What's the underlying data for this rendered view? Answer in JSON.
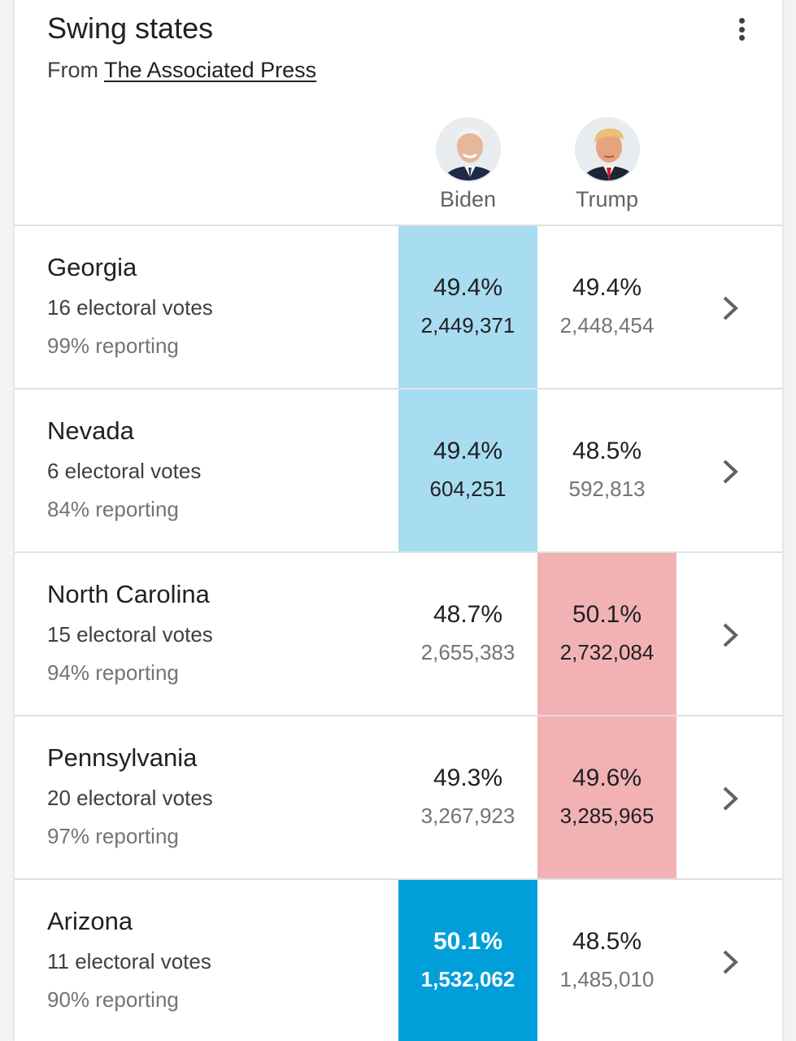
{
  "header": {
    "title": "Swing states",
    "source_prefix": "From",
    "source_link": "The Associated Press",
    "menu_icon": "more-vert-icon"
  },
  "candidates": [
    {
      "name": "Biden",
      "color": "#009fd9"
    },
    {
      "name": "Trump",
      "color": "#e8404a"
    }
  ],
  "colors": {
    "biden_leading": "#a8dcf0",
    "biden_won": "#009fd9",
    "trump_leading": "#f2b2b4"
  },
  "states": [
    {
      "name": "Georgia",
      "electoral": "16 electoral votes",
      "reporting": "99% reporting",
      "biden": {
        "pct": "49.4%",
        "votes": "2,449,371"
      },
      "trump": {
        "pct": "49.4%",
        "votes": "2,448,454"
      }
    },
    {
      "name": "Nevada",
      "electoral": "6 electoral votes",
      "reporting": "84% reporting",
      "biden": {
        "pct": "49.4%",
        "votes": "604,251"
      },
      "trump": {
        "pct": "48.5%",
        "votes": "592,813"
      }
    },
    {
      "name": "North Carolina",
      "electoral": "15 electoral votes",
      "reporting": "94% reporting",
      "biden": {
        "pct": "48.7%",
        "votes": "2,655,383"
      },
      "trump": {
        "pct": "50.1%",
        "votes": "2,732,084"
      }
    },
    {
      "name": "Pennsylvania",
      "electoral": "20 electoral votes",
      "reporting": "97% reporting",
      "biden": {
        "pct": "49.3%",
        "votes": "3,267,923"
      },
      "trump": {
        "pct": "49.6%",
        "votes": "3,285,965"
      }
    },
    {
      "name": "Arizona",
      "electoral": "11 electoral votes",
      "reporting": "90% reporting",
      "biden": {
        "pct": "50.1%",
        "votes": "1,532,062"
      },
      "trump": {
        "pct": "48.5%",
        "votes": "1,485,010"
      }
    }
  ]
}
